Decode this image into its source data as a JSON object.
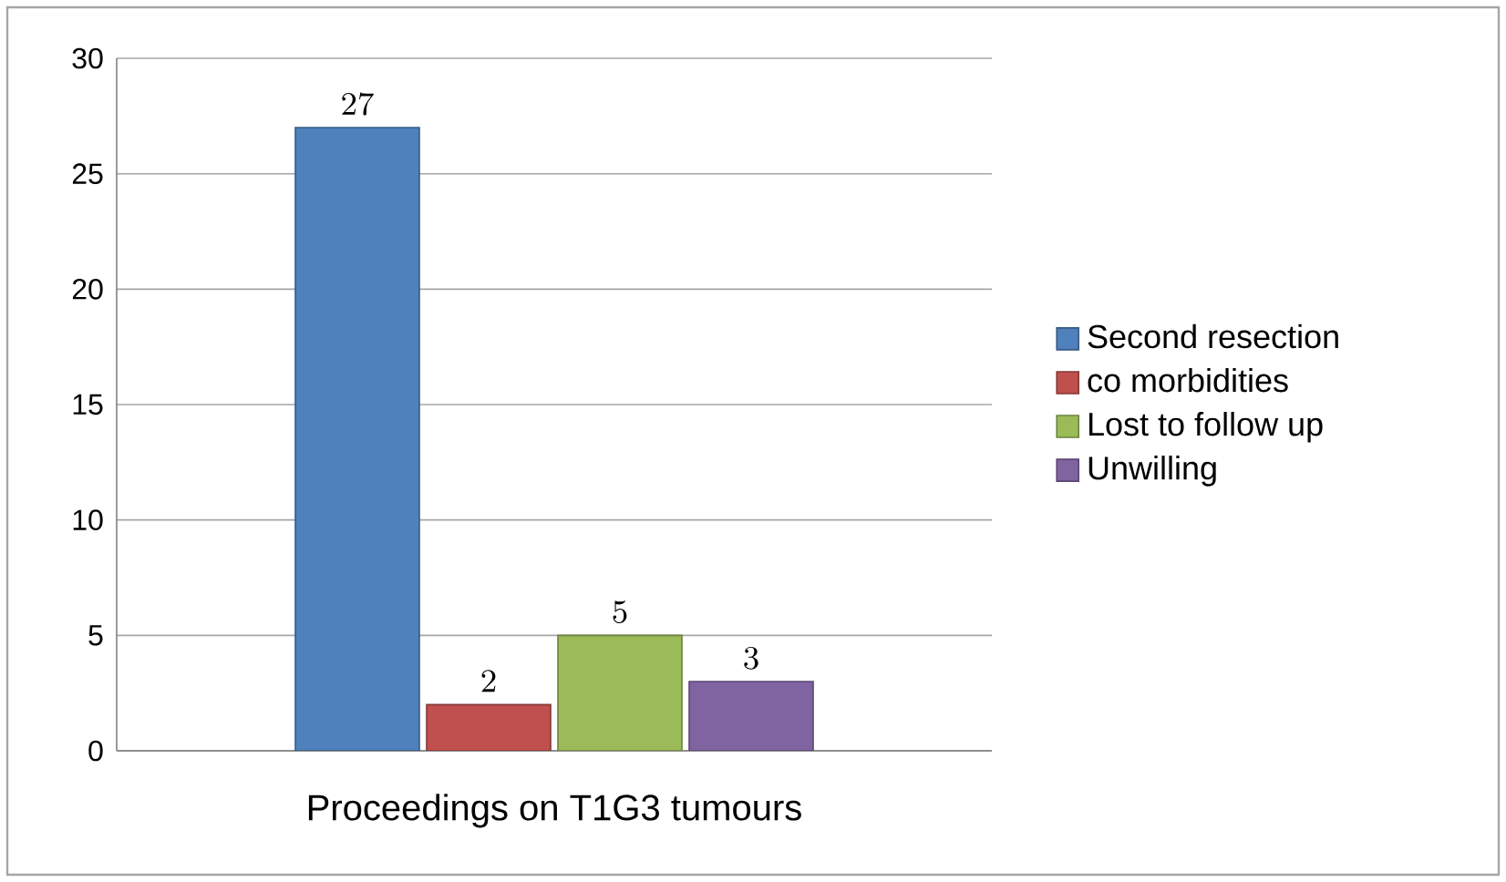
{
  "chart_data": {
    "type": "bar",
    "categories": [
      "Proceedings on T1G3 tumours"
    ],
    "series": [
      {
        "name": "Second resection",
        "color": "#4f81bd",
        "values": [
          27
        ]
      },
      {
        "name": "co morbidities",
        "color": "#c0504d",
        "values": [
          2
        ]
      },
      {
        "name": "Lost to follow up",
        "color": "#9bbb59",
        "values": [
          5
        ]
      },
      {
        "name": "Unwilling",
        "color": "#8064a2",
        "values": [
          3
        ]
      }
    ],
    "ylim": [
      0,
      30
    ],
    "yticks": [
      0,
      5,
      10,
      15,
      20,
      25,
      30
    ],
    "grid": "y",
    "legend": "right",
    "data_labels": true
  }
}
